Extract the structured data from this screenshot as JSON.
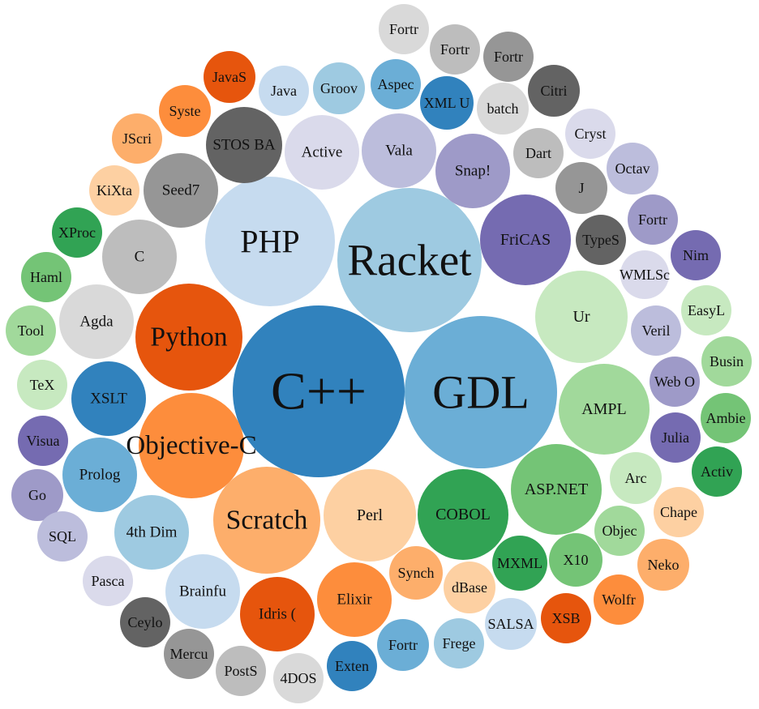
{
  "chart_data": {
    "type": "bubble",
    "title": "",
    "colors": {
      "blue_dark": "#3182bd",
      "blue_mid": "#6baed6",
      "blue_light": "#9ecae1",
      "blue_pale": "#c6dbef",
      "orange_dark": "#e6550d",
      "orange_mid": "#fd8d3c",
      "orange_light": "#fdae6b",
      "orange_pale": "#fdd0a2",
      "green_dark": "#31a354",
      "green_mid": "#74c476",
      "green_light": "#a1d99b",
      "green_pale": "#c7e9c0",
      "purple_dark": "#756bb1",
      "purple_mid": "#9e9ac8",
      "purple_light": "#bcbddc",
      "purple_pale": "#dadaeb",
      "grey_dark": "#636363",
      "grey_mid": "#969696",
      "grey_light": "#bdbdbd",
      "grey_pale": "#d9d9d9"
    },
    "bubbles": [
      {
        "label": "C++",
        "value": 100,
        "color": "blue_dark"
      },
      {
        "label": "GDL",
        "value": 81,
        "color": "blue_mid"
      },
      {
        "label": "Racket",
        "value": 66,
        "color": "blue_light"
      },
      {
        "label": "PHP",
        "value": 56,
        "color": "blue_pale"
      },
      {
        "label": "Python",
        "value": 39,
        "color": "orange_dark"
      },
      {
        "label": "Objective-C",
        "value": 38,
        "color": "orange_mid"
      },
      {
        "label": "Scratch",
        "value": 30,
        "color": "orange_light"
      },
      {
        "label": "Perl",
        "value": 29,
        "color": "orange_pale"
      },
      {
        "label": "COBOL",
        "value": 28,
        "color": "green_dark"
      },
      {
        "label": "ASP.NET",
        "value": 25,
        "color": "green_mid"
      },
      {
        "label": "AMPL",
        "value": 26,
        "color": "green_light"
      },
      {
        "label": "Ur",
        "value": 28,
        "color": "green_pale"
      },
      {
        "label": "FriCAS",
        "value": 22,
        "color": "purple_dark"
      },
      {
        "label": "Snap!",
        "value": 14,
        "color": "purple_mid"
      },
      {
        "label": "Vala",
        "value": 17,
        "color": "purple_light"
      },
      {
        "label": "Active",
        "value": 15,
        "color": "purple_pale"
      },
      {
        "label": "STOS BA",
        "value": 13,
        "color": "grey_dark"
      },
      {
        "label": "Seed7",
        "value": 13,
        "color": "grey_mid"
      },
      {
        "label": "C",
        "value": 12,
        "color": "grey_light"
      },
      {
        "label": "Agda",
        "value": 13,
        "color": "grey_pale"
      },
      {
        "label": "XSLT",
        "value": 12,
        "color": "blue_dark"
      },
      {
        "label": "Prolog",
        "value": 12,
        "color": "blue_mid"
      },
      {
        "label": "4th Dim",
        "value": 12,
        "color": "blue_light"
      },
      {
        "label": "Brainfu",
        "value": 13,
        "color": "blue_pale"
      },
      {
        "label": "Idris (",
        "value": 12,
        "color": "orange_dark"
      },
      {
        "label": "Elixir",
        "value": 12,
        "color": "orange_mid"
      },
      {
        "label": "Synch",
        "value": 6,
        "color": "orange_light"
      },
      {
        "label": "dBase",
        "value": 6,
        "color": "orange_pale"
      },
      {
        "label": "MXML",
        "value": 5,
        "color": "green_dark"
      },
      {
        "label": "X10",
        "value": 5,
        "color": "green_mid"
      },
      {
        "label": "Objec",
        "value": 5,
        "color": "green_light"
      },
      {
        "label": "Arc",
        "value": 5,
        "color": "green_pale"
      },
      {
        "label": "Julia",
        "value": 5,
        "color": "purple_dark"
      },
      {
        "label": "Web O",
        "value": 5,
        "color": "purple_mid"
      },
      {
        "label": "Veril",
        "value": 5,
        "color": "purple_light"
      },
      {
        "label": "WMLSc",
        "value": 4,
        "color": "purple_pale"
      },
      {
        "label": "TypeS",
        "value": 5,
        "color": "grey_dark"
      },
      {
        "label": "J",
        "value": 5,
        "color": "grey_mid"
      },
      {
        "label": "Dart",
        "value": 5,
        "color": "grey_light"
      },
      {
        "label": "batch",
        "value": 5,
        "color": "grey_pale"
      },
      {
        "label": "XML U",
        "value": 5,
        "color": "blue_dark"
      },
      {
        "label": "Aspec",
        "value": 5,
        "color": "blue_mid"
      },
      {
        "label": "Groov",
        "value": 5,
        "color": "blue_light"
      },
      {
        "label": "Java",
        "value": 5,
        "color": "blue_pale"
      },
      {
        "label": "JavaS",
        "value": 5,
        "color": "orange_dark"
      },
      {
        "label": "Syste",
        "value": 5,
        "color": "orange_mid"
      },
      {
        "label": "JScri",
        "value": 5,
        "color": "orange_light"
      },
      {
        "label": "KiXta",
        "value": 5,
        "color": "orange_pale"
      },
      {
        "label": "XProc",
        "value": 5,
        "color": "green_dark"
      },
      {
        "label": "Haml",
        "value": 5,
        "color": "green_mid"
      },
      {
        "label": "Tool",
        "value": 5,
        "color": "green_light"
      },
      {
        "label": "TeX",
        "value": 5,
        "color": "green_pale"
      },
      {
        "label": "Visua",
        "value": 5,
        "color": "purple_dark"
      },
      {
        "label": "Go",
        "value": 5,
        "color": "purple_mid"
      },
      {
        "label": "SQL",
        "value": 5,
        "color": "purple_light"
      },
      {
        "label": "Pasca",
        "value": 5,
        "color": "purple_pale"
      },
      {
        "label": "Ceylo",
        "value": 5,
        "color": "grey_dark"
      },
      {
        "label": "Mercu",
        "value": 5,
        "color": "grey_mid"
      },
      {
        "label": "PostS",
        "value": 5,
        "color": "grey_light"
      },
      {
        "label": "4DOS",
        "value": 5,
        "color": "grey_pale"
      },
      {
        "label": "Exten",
        "value": 5,
        "color": "blue_dark"
      },
      {
        "label": "Fortr",
        "value": 6,
        "color": "blue_mid"
      },
      {
        "label": "Frege",
        "value": 6,
        "color": "blue_light"
      },
      {
        "label": "SALSA",
        "value": 6,
        "color": "blue_pale"
      },
      {
        "label": "XSB",
        "value": 5,
        "color": "orange_dark"
      },
      {
        "label": "Wolfr",
        "value": 5,
        "color": "orange_mid"
      },
      {
        "label": "Neko",
        "value": 5,
        "color": "orange_light"
      },
      {
        "label": "Chape",
        "value": 5,
        "color": "orange_pale"
      },
      {
        "label": "Activ",
        "value": 5,
        "color": "green_dark"
      },
      {
        "label": "Ambie",
        "value": 5,
        "color": "green_mid"
      },
      {
        "label": "Busin",
        "value": 5,
        "color": "green_light"
      },
      {
        "label": "EasyL",
        "value": 5,
        "color": "green_pale"
      },
      {
        "label": "Nim",
        "value": 5,
        "color": "purple_dark"
      },
      {
        "label": "Fortr",
        "value": 5,
        "color": "purple_mid"
      },
      {
        "label": "Octav",
        "value": 5,
        "color": "purple_light"
      },
      {
        "label": "Cryst",
        "value": 5,
        "color": "purple_pale"
      },
      {
        "label": "Citri",
        "value": 5,
        "color": "grey_dark"
      },
      {
        "label": "Fortr",
        "value": 5,
        "color": "grey_mid"
      },
      {
        "label": "Fortr",
        "value": 5,
        "color": "grey_light"
      },
      {
        "label": "Fortr",
        "value": 5,
        "color": "grey_pale"
      }
    ]
  }
}
